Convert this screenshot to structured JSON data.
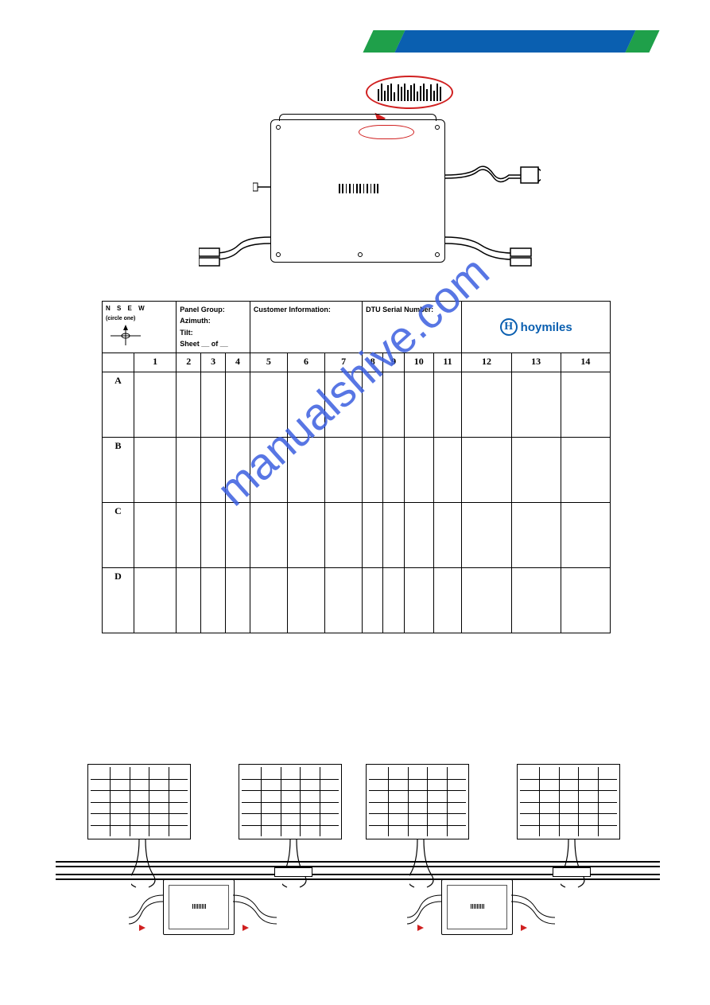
{
  "header": {
    "bar_colors": [
      "#1fa04a",
      "#0a5fb0",
      "#1fa04a"
    ]
  },
  "compass": {
    "dirs": "N  S  E  W",
    "sub": "(circle one)"
  },
  "info_block": {
    "line1": "Panel Group:",
    "line2": "Azimuth:",
    "line3": "Tilt:",
    "line4": "Sheet  __  of  __"
  },
  "customer_label": "Customer Information:",
  "dtu_label": "DTU Serial Number:",
  "logo_text": "hoymiles",
  "logo_letter": "H",
  "col_heads": [
    "1",
    "2",
    "3",
    "4",
    "5",
    "6",
    "7",
    "8",
    "9",
    "10",
    "11",
    "12",
    "13",
    "14"
  ],
  "row_heads": [
    "A",
    "B",
    "C",
    "D"
  ],
  "watermark": "manualshive.com",
  "accent_red": "#d02020",
  "accent_blue": "#0a5fb0",
  "table": {
    "cols": 14,
    "rows": 4
  }
}
